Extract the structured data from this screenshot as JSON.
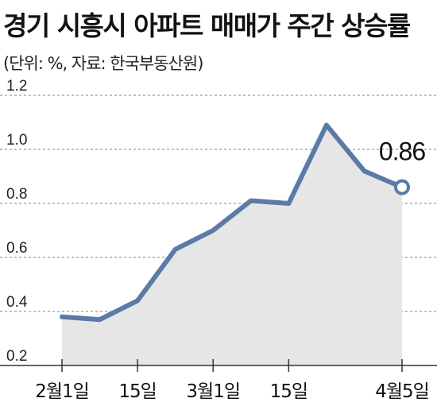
{
  "title": "경기 시흥시 아파트 매매가 주간 상승률",
  "subtitle": "(단위: %, 자료: 한국부동산원)",
  "colors": {
    "line": "#5b7ba6",
    "area": "#e6e6e6",
    "grid": "#9a9a9a",
    "marker_fill": "#ffffff"
  },
  "chart_data": {
    "type": "area",
    "title": "경기 시흥시 아파트 매매가 주간 상승률",
    "subtitle": "(단위: %, 자료: 한국부동산원)",
    "xlabel": "",
    "ylabel": "",
    "ylim": [
      0.2,
      1.2
    ],
    "yticks": [
      "0.2",
      "0.4",
      "0.6",
      "0.8",
      "1.0",
      "1.2"
    ],
    "xtick_labels": [
      {
        "label": "2월1일",
        "index": 0
      },
      {
        "label": "15일",
        "index": 2
      },
      {
        "label": "3월1일",
        "index": 4
      },
      {
        "label": "15일",
        "index": 6
      },
      {
        "label": "4월5일",
        "index": 9
      }
    ],
    "series": [
      {
        "values": [
          0.38,
          0.37,
          0.44,
          0.63,
          0.7,
          0.81,
          0.8,
          1.09,
          0.92,
          0.86
        ]
      }
    ],
    "annotations": [
      {
        "text": "0.86",
        "index": 9
      }
    ],
    "grid": "horizontal dashed",
    "legend": "none"
  }
}
